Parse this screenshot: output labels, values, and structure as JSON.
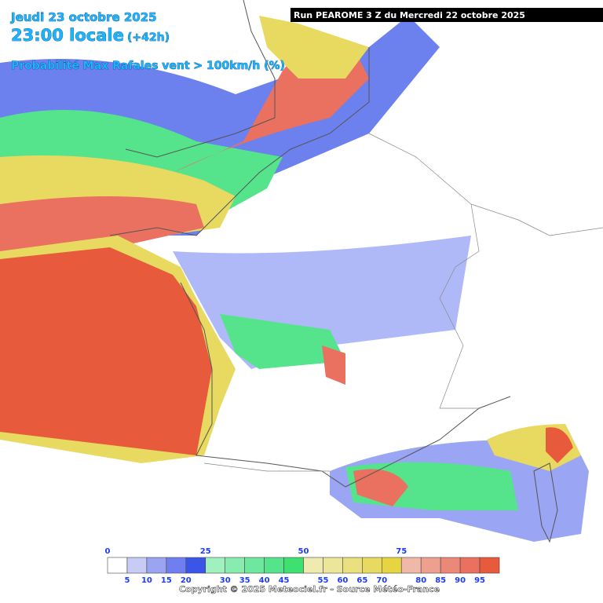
{
  "header": {
    "date": "Jeudi 23 octobre 2025",
    "time": "23:00 locale",
    "lead": "(+42h)",
    "parameter": "Probabilité Max Rafales vent > 100km/h (%)",
    "run": "Run PEAROME 3 Z du Mercredi 22 octobre 2025"
  },
  "legend": {
    "range": [
      0,
      100
    ],
    "colors": [
      "#ffffff",
      "#c8ccf5",
      "#9aa4f0",
      "#6f7ff0",
      "#3b55e8",
      "#a0f0c0",
      "#88ecb0",
      "#6ee89e",
      "#55e48c",
      "#3ee070",
      "#eeeab0",
      "#ece69a",
      "#eae080",
      "#e8da60",
      "#e6d440",
      "#f0b8a8",
      "#eea090",
      "#ec8878",
      "#ea7060",
      "#e85a3c"
    ],
    "top_ticks": [
      0,
      25,
      50,
      75
    ],
    "bottom_ticks": [
      5,
      10,
      15,
      20,
      30,
      35,
      40,
      45,
      55,
      60,
      65,
      70,
      80,
      85,
      90,
      95
    ]
  },
  "footer": "Copyright © 2025 Meteociel.fr - Source Météo-France"
}
